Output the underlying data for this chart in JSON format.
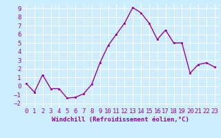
{
  "x": [
    0,
    1,
    2,
    3,
    4,
    5,
    6,
    7,
    8,
    9,
    10,
    11,
    12,
    13,
    14,
    15,
    16,
    17,
    18,
    19,
    20,
    21,
    22,
    23
  ],
  "y": [
    0.3,
    -0.7,
    1.3,
    -0.3,
    -0.3,
    -1.4,
    -1.3,
    -0.9,
    0.2,
    2.7,
    4.7,
    6.0,
    7.3,
    9.1,
    8.5,
    7.3,
    5.4,
    6.5,
    5.0,
    5.0,
    1.5,
    2.5,
    2.7,
    2.2
  ],
  "line_color": "#990099",
  "marker": "s",
  "marker_size": 2,
  "linewidth": 1.0,
  "xlabel": "Windchill (Refroidissement éolien,°C)",
  "xlim": [
    -0.5,
    23.5
  ],
  "ylim": [
    -2.5,
    9.5
  ],
  "yticks": [
    -2,
    -1,
    0,
    1,
    2,
    3,
    4,
    5,
    6,
    7,
    8,
    9
  ],
  "xticks": [
    0,
    1,
    2,
    3,
    4,
    5,
    6,
    7,
    8,
    9,
    10,
    11,
    12,
    13,
    14,
    15,
    16,
    17,
    18,
    19,
    20,
    21,
    22,
    23
  ],
  "background_color": "#cceeff",
  "grid_color": "#ffffff",
  "tick_color": "#990099",
  "label_color": "#990099",
  "xlabel_fontsize": 6.5,
  "tick_fontsize": 6.5
}
